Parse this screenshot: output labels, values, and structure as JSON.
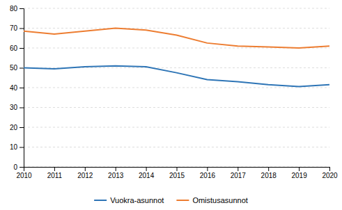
{
  "chart_data": {
    "type": "line",
    "x": [
      2010,
      2011,
      2012,
      2013,
      2014,
      2015,
      2016,
      2017,
      2018,
      2019,
      2020
    ],
    "series": [
      {
        "name": "Vuokra-asunnot",
        "color": "#2E75B6",
        "values": [
          50.0,
          49.5,
          50.5,
          51.0,
          50.5,
          47.5,
          44.0,
          43.0,
          41.5,
          40.5,
          41.5
        ]
      },
      {
        "name": "Omistusasunnot",
        "color": "#ED7D31",
        "values": [
          68.5,
          67.0,
          68.5,
          70.0,
          69.0,
          66.5,
          62.5,
          61.0,
          60.5,
          60.0,
          61.0
        ]
      }
    ],
    "xlim": [
      2010,
      2020
    ],
    "xticks": [
      2010,
      2011,
      2012,
      2013,
      2014,
      2015,
      2016,
      2017,
      2018,
      2019,
      2020
    ],
    "ylim": [
      0,
      80
    ],
    "yticks": [
      0,
      10,
      20,
      30,
      40,
      50,
      60,
      70,
      80
    ],
    "grid": true,
    "legend": "bottom"
  }
}
